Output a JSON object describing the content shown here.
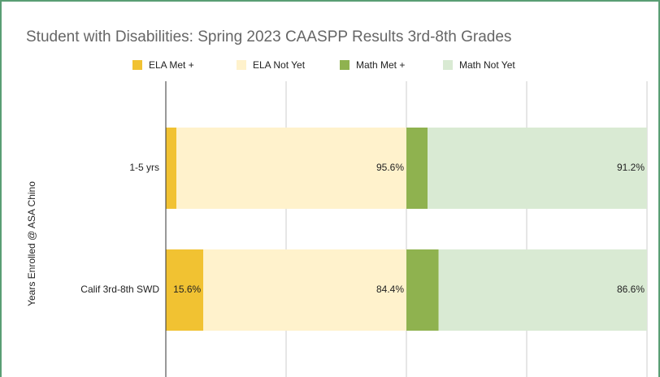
{
  "chart_data": {
    "type": "bar",
    "orientation": "horizontal",
    "stacked": true,
    "title": "Student with Disabilities: Spring 2023 CAASPP Results 3rd-8th Grades",
    "y_label": "Years Enrolled @ ASA Chino",
    "categories": [
      "1-5 yrs",
      "Calif 3rd-8th SWD"
    ],
    "series": [
      {
        "name": "ELA Met +",
        "color": "#f1c232",
        "values": [
          4.4,
          15.6
        ],
        "value_labels": [
          "4.4%",
          "15.6%"
        ]
      },
      {
        "name": "ELA Not Yet",
        "color": "#fff2cc",
        "values": [
          95.6,
          84.4
        ],
        "value_labels": [
          "95.6%",
          "84.4%"
        ]
      },
      {
        "name": "Math Met +",
        "color": "#8fb24f",
        "values": [
          8.8,
          13.4
        ],
        "value_labels": [
          "8.8%",
          "13.4%"
        ]
      },
      {
        "name": "Math Not Yet",
        "color": "#d9ead3",
        "values": [
          91.2,
          86.6
        ],
        "value_labels": [
          "91.2%",
          "86.6%"
        ]
      }
    ],
    "xlim": [
      0,
      200
    ],
    "xticks": [
      0,
      50,
      100,
      150,
      200
    ],
    "grid": true,
    "legend": "top"
  }
}
